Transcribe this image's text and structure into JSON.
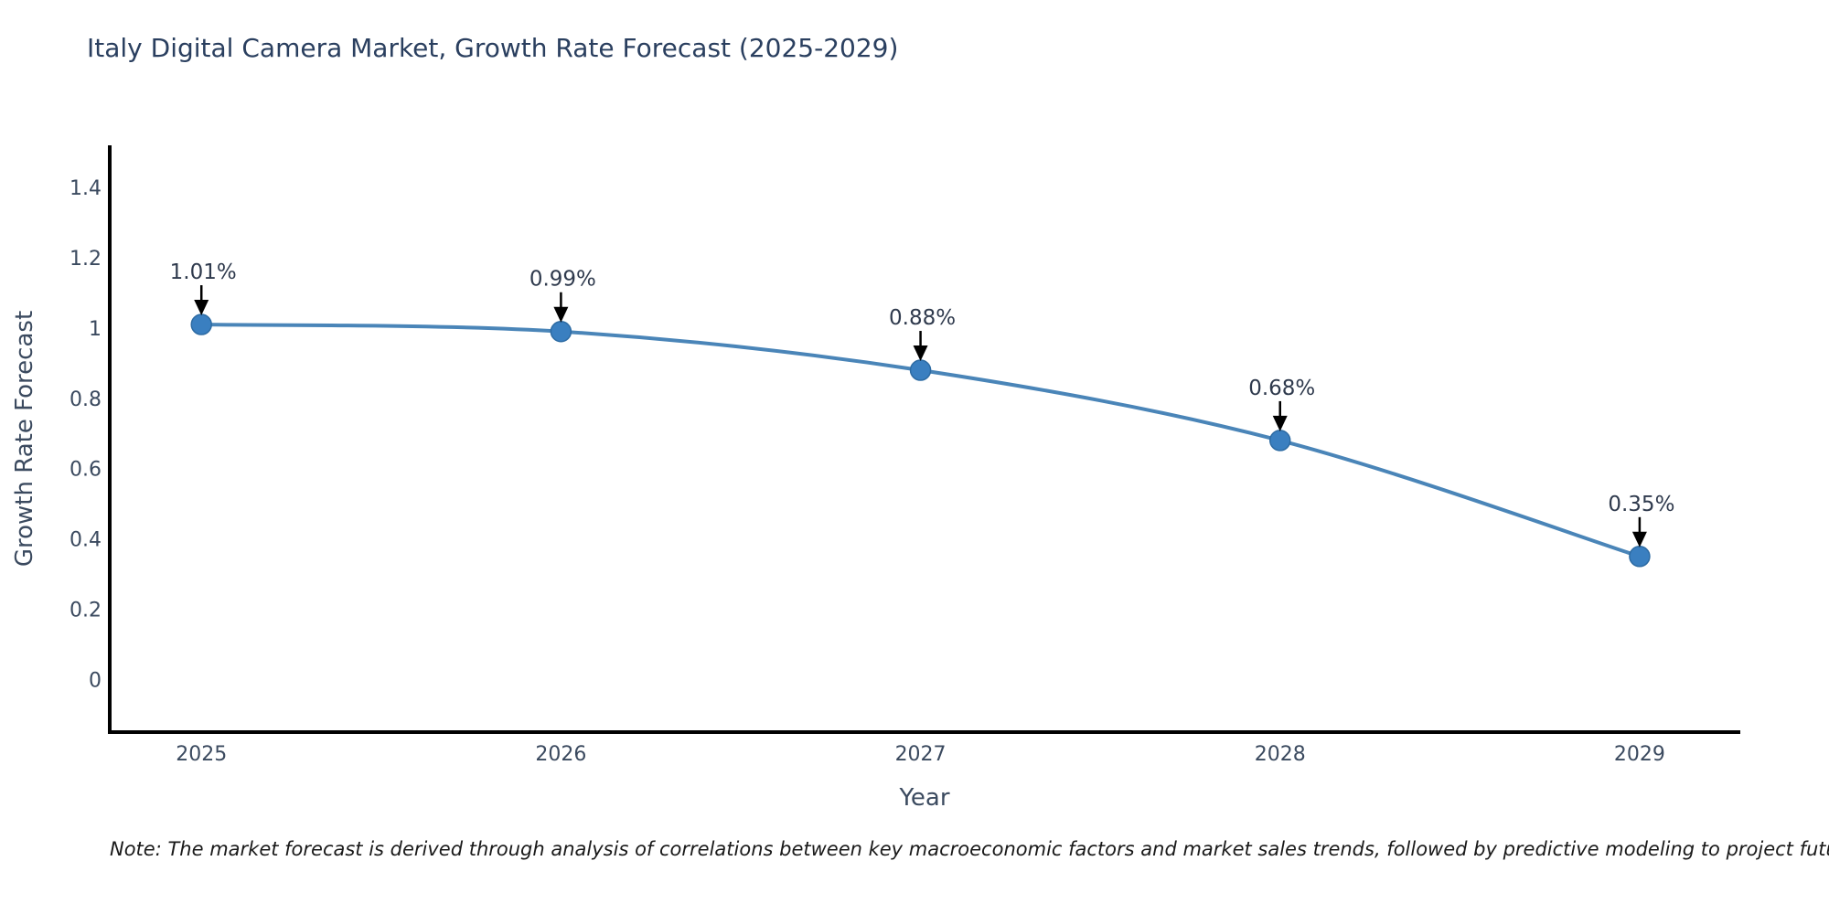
{
  "note": "Note: The market forecast is derived through analysis of correlations between key macroeconomic factors and market sales trends, followed by predictive modeling to project future sales",
  "colors": {
    "title": "#2a3f5f",
    "axis_text": "#3b4a5f",
    "line": "#4a85b8",
    "marker": "#3a7fc0",
    "marker_edge": "#2d6ba3",
    "spine": "#000000",
    "annotation_text": "#2f3a4d",
    "arrow": "#000000",
    "background": "#ffffff"
  },
  "chart_data": {
    "type": "line",
    "title": "Italy Digital Camera Market, Growth Rate Forecast (2025-2029)",
    "xlabel": "Year",
    "ylabel": "Growth Rate Forecast",
    "x": [
      2025,
      2026,
      2027,
      2028,
      2029
    ],
    "values": [
      1.01,
      0.99,
      0.88,
      0.68,
      0.35
    ],
    "point_labels": [
      "1.01%",
      "0.99%",
      "0.88%",
      "0.68%",
      "0.35%"
    ],
    "x_tick_labels": [
      "2025",
      "2026",
      "2027",
      "2028",
      "2029"
    ],
    "y_ticks": [
      0,
      0.2,
      0.4,
      0.6,
      0.8,
      1,
      1.2,
      1.4
    ],
    "y_tick_labels": [
      "0",
      "0.2",
      "0.4",
      "0.6",
      "0.8",
      "1",
      "1.2",
      "1.4"
    ],
    "xlim": [
      2024.74,
      2029.28
    ],
    "ylim": [
      -0.15,
      1.52
    ],
    "grid": false,
    "legend": false,
    "marker": "circle",
    "smooth": true,
    "annotations": "value labels with downward arrows above each point"
  }
}
